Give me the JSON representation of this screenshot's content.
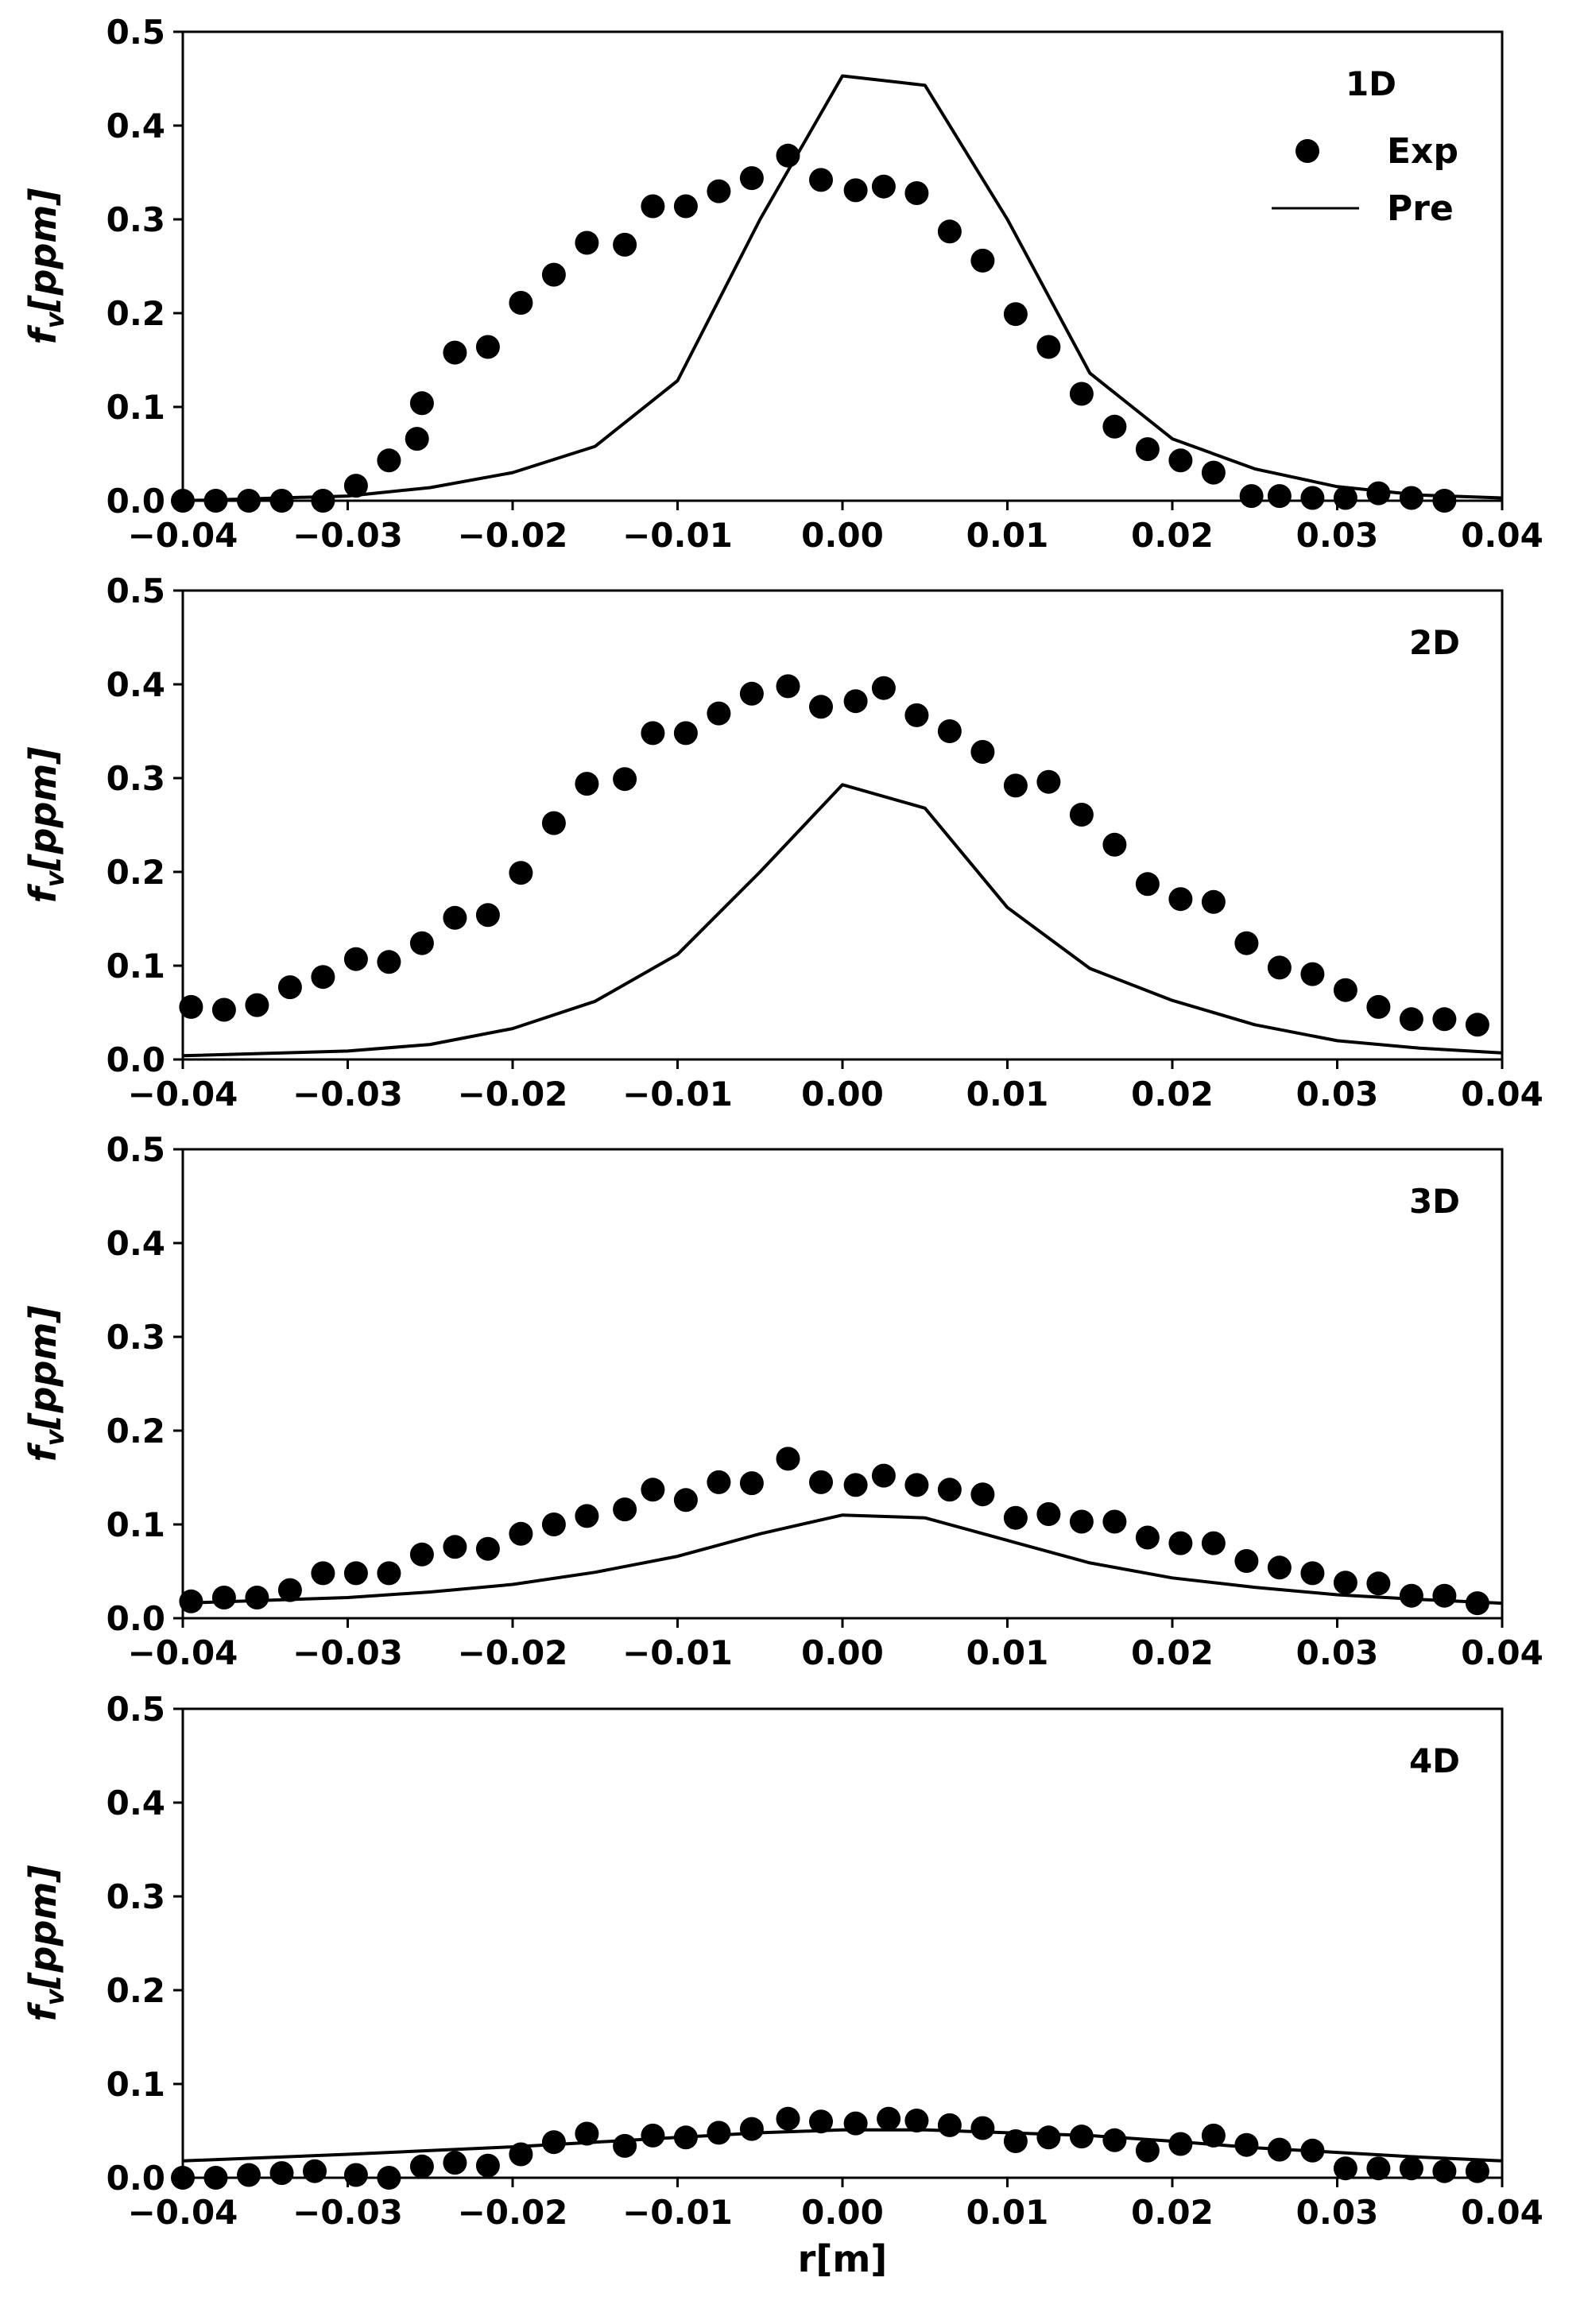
{
  "chart_data": [
    {
      "type": "scatter",
      "panel_label": "1D",
      "xlabel": "",
      "ylabel": "f_v[ppm]",
      "xlim": [
        -0.04,
        0.04
      ],
      "ylim": [
        0,
        0.5
      ],
      "x_ticks": [
        "−0.04",
        "−0.03",
        "−0.02",
        "−0.01",
        "0.00",
        "0.01",
        "0.02",
        "0.03",
        "0.04"
      ],
      "y_ticks": [
        "0.0",
        "0.1",
        "0.2",
        "0.3",
        "0.4",
        "0.5"
      ],
      "legend": {
        "placement": "top-right",
        "entries": [
          "Exp",
          "Pre"
        ]
      },
      "series": [
        {
          "name": "Exp",
          "style": "markers",
          "x": [
            -0.04,
            -0.038,
            -0.036,
            -0.034,
            -0.0315,
            -0.0295,
            -0.0275,
            -0.0258,
            -0.0255,
            -0.0235,
            -0.0215,
            -0.0195,
            -0.0175,
            -0.0155,
            -0.0132,
            -0.0115,
            -0.0095,
            -0.0075,
            -0.0055,
            -0.0033,
            -0.0013,
            0.0008,
            0.0025,
            0.0045,
            0.0065,
            0.0085,
            0.0105,
            0.0125,
            0.0145,
            0.0165,
            0.0185,
            0.0205,
            0.0225,
            0.0248,
            0.0265,
            0.0285,
            0.0305,
            0.0325,
            0.0345,
            0.0365
          ],
          "y": [
            0.0,
            0.0,
            0.0,
            0.0,
            0.0,
            0.016,
            0.043,
            0.066,
            0.104,
            0.158,
            0.164,
            0.211,
            0.241,
            0.275,
            0.273,
            0.314,
            0.314,
            0.33,
            0.344,
            0.368,
            0.342,
            0.331,
            0.335,
            0.328,
            0.287,
            0.256,
            0.199,
            0.164,
            0.114,
            0.079,
            0.055,
            0.043,
            0.03,
            0.005,
            0.005,
            0.003,
            0.003,
            0.008,
            0.003,
            0.0
          ]
        },
        {
          "name": "Pre",
          "style": "line",
          "x": [
            -0.04,
            -0.03,
            -0.025,
            -0.02,
            -0.015,
            -0.01,
            -0.005,
            0.0,
            0.005,
            0.01,
            0.015,
            0.02,
            0.025,
            0.03,
            0.035,
            0.04
          ],
          "y": [
            0.0,
            0.005,
            0.014,
            0.03,
            0.058,
            0.128,
            0.3,
            0.453,
            0.443,
            0.3,
            0.136,
            0.066,
            0.034,
            0.015,
            0.006,
            0.003
          ]
        }
      ]
    },
    {
      "type": "scatter",
      "panel_label": "2D",
      "xlabel": "",
      "ylabel": "f_v[ppm]",
      "xlim": [
        -0.04,
        0.04
      ],
      "ylim": [
        0,
        0.5
      ],
      "x_ticks": [
        "−0.04",
        "−0.03",
        "−0.02",
        "−0.01",
        "0.00",
        "0.01",
        "0.02",
        "0.03",
        "0.04"
      ],
      "y_ticks": [
        "0.0",
        "0.1",
        "0.2",
        "0.3",
        "0.4",
        "0.5"
      ],
      "series": [
        {
          "name": "Exp",
          "style": "markers",
          "x": [
            -0.0395,
            -0.0375,
            -0.0355,
            -0.0335,
            -0.0315,
            -0.0295,
            -0.0275,
            -0.0255,
            -0.0235,
            -0.0215,
            -0.0195,
            -0.0175,
            -0.0155,
            -0.0132,
            -0.0115,
            -0.0095,
            -0.0075,
            -0.0055,
            -0.0033,
            -0.0013,
            0.0008,
            0.0025,
            0.0045,
            0.0065,
            0.0085,
            0.0105,
            0.0125,
            0.0145,
            0.0165,
            0.0185,
            0.0205,
            0.0225,
            0.0245,
            0.0265,
            0.0285,
            0.0305,
            0.0325,
            0.0345,
            0.0365,
            0.0385
          ],
          "y": [
            0.056,
            0.053,
            0.058,
            0.077,
            0.088,
            0.107,
            0.104,
            0.124,
            0.151,
            0.154,
            0.199,
            0.252,
            0.294,
            0.299,
            0.348,
            0.348,
            0.369,
            0.39,
            0.398,
            0.376,
            0.382,
            0.396,
            0.367,
            0.35,
            0.328,
            0.292,
            0.296,
            0.261,
            0.229,
            0.187,
            0.171,
            0.168,
            0.124,
            0.098,
            0.091,
            0.074,
            0.056,
            0.043,
            0.043,
            0.037
          ]
        },
        {
          "name": "Pre",
          "style": "line",
          "x": [
            -0.04,
            -0.03,
            -0.025,
            -0.02,
            -0.015,
            -0.01,
            -0.005,
            0.0,
            0.005,
            0.01,
            0.015,
            0.02,
            0.025,
            0.03,
            0.035,
            0.04
          ],
          "y": [
            0.004,
            0.009,
            0.016,
            0.033,
            0.062,
            0.112,
            0.2,
            0.293,
            0.268,
            0.162,
            0.097,
            0.063,
            0.037,
            0.02,
            0.012,
            0.007
          ]
        }
      ]
    },
    {
      "type": "scatter",
      "panel_label": "3D",
      "xlabel": "",
      "ylabel": "f_v[ppm]",
      "xlim": [
        -0.04,
        0.04
      ],
      "ylim": [
        0,
        0.5
      ],
      "x_ticks": [
        "−0.04",
        "−0.03",
        "−0.02",
        "−0.01",
        "0.00",
        "0.01",
        "0.02",
        "0.03",
        "0.04"
      ],
      "y_ticks": [
        "0.0",
        "0.1",
        "0.2",
        "0.3",
        "0.4",
        "0.5"
      ],
      "series": [
        {
          "name": "Exp",
          "style": "markers",
          "x": [
            -0.0395,
            -0.0375,
            -0.0355,
            -0.0335,
            -0.0315,
            -0.0295,
            -0.0275,
            -0.0255,
            -0.0235,
            -0.0215,
            -0.0195,
            -0.0175,
            -0.0155,
            -0.0132,
            -0.0115,
            -0.0095,
            -0.0075,
            -0.0055,
            -0.0033,
            -0.0013,
            0.0008,
            0.0025,
            0.0045,
            0.0065,
            0.0085,
            0.0105,
            0.0125,
            0.0145,
            0.0165,
            0.0185,
            0.0205,
            0.0225,
            0.0245,
            0.0265,
            0.0285,
            0.0305,
            0.0325,
            0.0345,
            0.0365,
            0.0385
          ],
          "y": [
            0.018,
            0.022,
            0.022,
            0.03,
            0.048,
            0.048,
            0.048,
            0.068,
            0.076,
            0.074,
            0.09,
            0.1,
            0.109,
            0.116,
            0.137,
            0.126,
            0.145,
            0.144,
            0.17,
            0.145,
            0.142,
            0.152,
            0.142,
            0.137,
            0.132,
            0.107,
            0.111,
            0.103,
            0.103,
            0.086,
            0.08,
            0.08,
            0.061,
            0.054,
            0.048,
            0.038,
            0.037,
            0.024,
            0.024,
            0.016
          ]
        },
        {
          "name": "Pre",
          "style": "line",
          "x": [
            -0.04,
            -0.03,
            -0.025,
            -0.02,
            -0.015,
            -0.01,
            -0.005,
            0.0,
            0.005,
            0.01,
            0.015,
            0.02,
            0.025,
            0.03,
            0.035,
            0.04
          ],
          "y": [
            0.016,
            0.022,
            0.028,
            0.036,
            0.049,
            0.066,
            0.09,
            0.11,
            0.107,
            0.083,
            0.059,
            0.043,
            0.033,
            0.025,
            0.02,
            0.016
          ]
        }
      ]
    },
    {
      "type": "scatter",
      "panel_label": "4D",
      "xlabel": "r[m]",
      "ylabel": "f_v[ppm]",
      "xlim": [
        -0.04,
        0.04
      ],
      "ylim": [
        0,
        0.5
      ],
      "x_ticks": [
        "−0.04",
        "−0.03",
        "−0.02",
        "−0.01",
        "0.00",
        "0.01",
        "0.02",
        "0.03",
        "0.04"
      ],
      "y_ticks": [
        "0.0",
        "0.1",
        "0.2",
        "0.3",
        "0.4",
        "0.5"
      ],
      "series": [
        {
          "name": "Exp",
          "style": "markers",
          "x": [
            -0.04,
            -0.038,
            -0.036,
            -0.034,
            -0.032,
            -0.0295,
            -0.0275,
            -0.0255,
            -0.0235,
            -0.0215,
            -0.0195,
            -0.0175,
            -0.0155,
            -0.0132,
            -0.0115,
            -0.0095,
            -0.0075,
            -0.0055,
            -0.0033,
            -0.0013,
            0.0008,
            0.0028,
            0.0045,
            0.0065,
            0.0085,
            0.0105,
            0.0125,
            0.0145,
            0.0165,
            0.0185,
            0.0205,
            0.0225,
            0.0245,
            0.0265,
            0.0285,
            0.0305,
            0.0325,
            0.0345,
            0.0365,
            0.0385
          ],
          "y": [
            0.0,
            0.0,
            0.003,
            0.005,
            0.007,
            0.003,
            0.0,
            0.012,
            0.016,
            0.013,
            0.025,
            0.038,
            0.047,
            0.034,
            0.045,
            0.043,
            0.048,
            0.052,
            0.063,
            0.06,
            0.058,
            0.063,
            0.061,
            0.056,
            0.053,
            0.039,
            0.043,
            0.044,
            0.04,
            0.029,
            0.036,
            0.045,
            0.035,
            0.03,
            0.029,
            0.01,
            0.01,
            0.01,
            0.007,
            0.007
          ]
        },
        {
          "name": "Pre",
          "style": "line",
          "x": [
            -0.04,
            -0.03,
            -0.02,
            -0.015,
            -0.01,
            -0.005,
            0.0,
            0.005,
            0.01,
            0.015,
            0.02,
            0.025,
            0.03,
            0.035,
            0.04
          ],
          "y": [
            0.018,
            0.025,
            0.033,
            0.038,
            0.043,
            0.048,
            0.051,
            0.051,
            0.048,
            0.045,
            0.039,
            0.032,
            0.027,
            0.022,
            0.018
          ]
        }
      ]
    }
  ]
}
